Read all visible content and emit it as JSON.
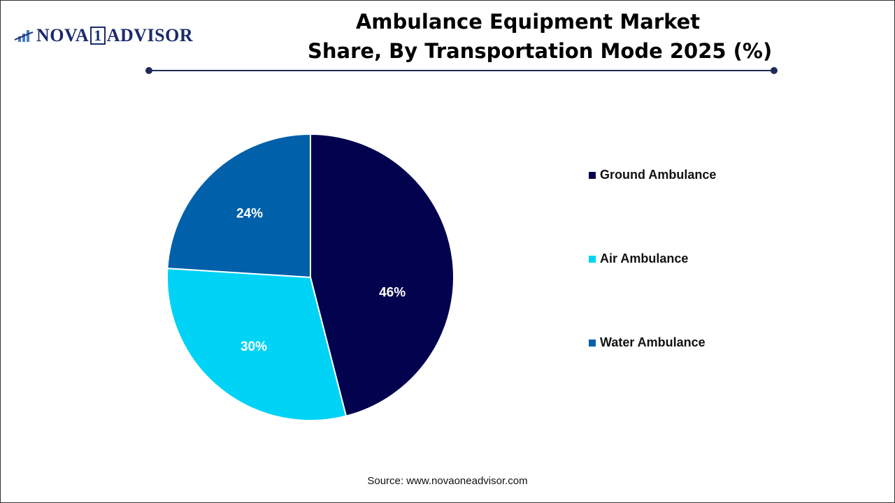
{
  "logo": {
    "text": "NOVA 1 ADVISOR",
    "part1": "NOVA",
    "part2": "1",
    "part3": "ADVISOR"
  },
  "title": {
    "line1": "Ambulance Equipment Market",
    "line2": "Share, By Transportation Mode 2025 (%)"
  },
  "source": "Source: www.novaoneadvisor.com",
  "chart_data": {
    "type": "pie",
    "title": "Ambulance Equipment Market Share, By Transportation Mode 2025 (%)",
    "start_angle": "top, clockwise",
    "legend_position": "right",
    "slices": [
      {
        "name": "Ground Ambulance",
        "value": 46,
        "label": "46%",
        "color": "#02024f"
      },
      {
        "name": "Air Ambulance",
        "value": 30,
        "label": "30%",
        "color": "#00d3f5"
      },
      {
        "name": "Water Ambulance",
        "value": 24,
        "label": "24%",
        "color": "#0060aa"
      }
    ]
  }
}
